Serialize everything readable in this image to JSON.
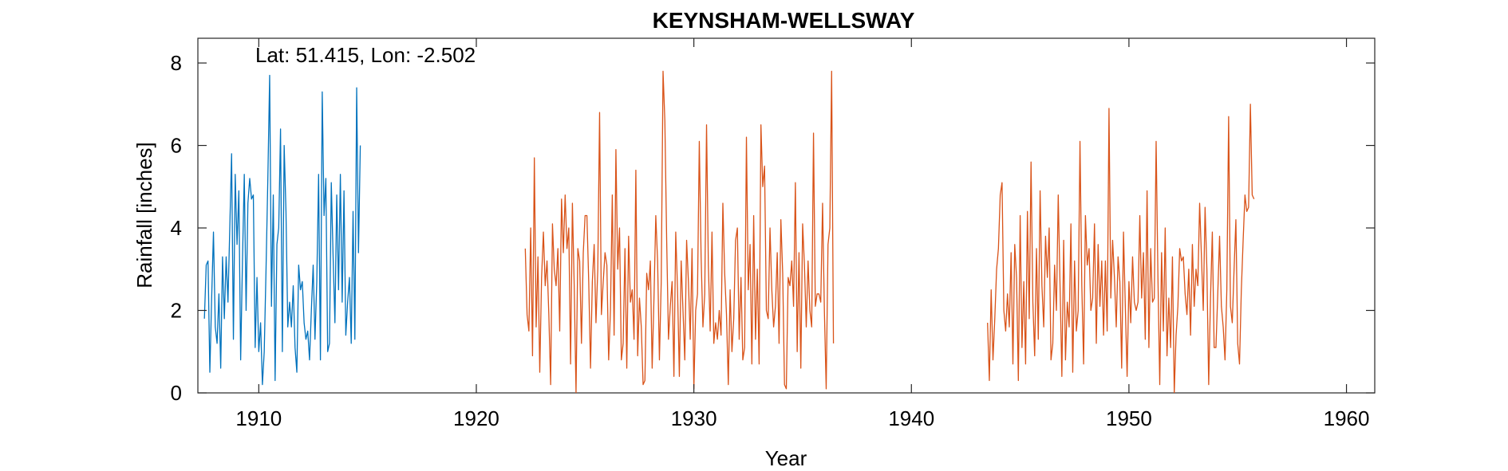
{
  "chart_data": {
    "type": "line",
    "title": "KEYNSHAM-WELLSWAY",
    "annotation": "Lat: 51.415, Lon: -2.502",
    "xlabel": "Year",
    "ylabel": "Rainfall [inches]",
    "xlim": [
      1907.2,
      1961.3
    ],
    "ylim": [
      0,
      8.6
    ],
    "xticks": [
      1910,
      1920,
      1930,
      1940,
      1950,
      1960
    ],
    "xtick_labels": [
      "1910",
      "1920",
      "1930",
      "1940",
      "1950",
      "1960"
    ],
    "yticks": [
      0,
      2,
      4,
      6,
      8
    ],
    "ytick_labels": [
      "0",
      "2",
      "4",
      "6",
      "8"
    ],
    "grid": false,
    "colors": {
      "series1": "#0072BD",
      "series2": "#D95319",
      "axis": "#262626"
    },
    "series": [
      {
        "x_start": 1907.5,
        "x_step": 0.0833333,
        "values": [
          1.8,
          3.1,
          3.2,
          0.5,
          2.3,
          3.9,
          1.6,
          1.2,
          2.4,
          0.6,
          3.3,
          1.8,
          3.3,
          2.2,
          4.0,
          5.8,
          1.3,
          5.3,
          3.6,
          4.9,
          0.8,
          3.2,
          5.3,
          2.0,
          4.6,
          5.2,
          4.7,
          4.8,
          1.1,
          2.8,
          1.0,
          1.7,
          0.2,
          1.0,
          3.0,
          5.2,
          7.7,
          2.1,
          4.8,
          0.3,
          3.6,
          4.0,
          6.4,
          1.0,
          6.0,
          4.4,
          1.6,
          2.2,
          1.6,
          2.6,
          1.1,
          0.5,
          3.1,
          2.5,
          2.7,
          1.7,
          1.3,
          1.5,
          0.8,
          2.0,
          3.1,
          1.3,
          2.7,
          5.3,
          0.8,
          7.3,
          4.3,
          5.2,
          1.0,
          1.2,
          5.1,
          3.3,
          1.7,
          4.8,
          2.5,
          5.3,
          2.2,
          4.9,
          1.4,
          2.2,
          2.8,
          1.2,
          4.4,
          1.3,
          7.4,
          3.4,
          6.0
        ]
      },
      {
        "x_start": 1922.25,
        "x_step": 0.0833333,
        "values": [
          3.5,
          1.9,
          1.5,
          4.0,
          0.9,
          5.7,
          1.6,
          3.3,
          0.5,
          2.8,
          3.9,
          2.6,
          3.2,
          1.9,
          0.2,
          4.1,
          3.0,
          2.6,
          3.5,
          1.5,
          4.7,
          3.4,
          4.8,
          3.5,
          4.0,
          0.7,
          4.6,
          2.6,
          0.0,
          3.5,
          3.2,
          1.2,
          3.4,
          4.3,
          4.3,
          2.7,
          0.6,
          2.7,
          3.6,
          1.7,
          3.0,
          6.8,
          1.9,
          2.7,
          3.4,
          3.1,
          0.8,
          2.0,
          4.8,
          1.4,
          5.9,
          3.0,
          4.0,
          0.8,
          1.2,
          3.5,
          0.6,
          3.8,
          2.2,
          2.5,
          1.3,
          5.4,
          0.9,
          2.3,
          1.6,
          0.2,
          0.3,
          2.9,
          2.5,
          3.2,
          0.6,
          2.3,
          4.3,
          3.2,
          0.8,
          2.7,
          7.8,
          6.6,
          3.7,
          1.3,
          2.1,
          2.7,
          0.4,
          3.9,
          2.5,
          0.4,
          3.2,
          2.0,
          0.8,
          3.7,
          2.7,
          1.3,
          3.5,
          0.1,
          2.0,
          2.4,
          6.1,
          3.3,
          1.6,
          2.4,
          6.5,
          3.1,
          1.5,
          3.9,
          1.2,
          1.7,
          1.3,
          2.0,
          1.4,
          4.6,
          2.9,
          1.9,
          0.2,
          2.5,
          1.0,
          1.8,
          3.7,
          4.0,
          1.3,
          2.8,
          0.8,
          1.1,
          6.2,
          2.5,
          3.6,
          0.7,
          4.3,
          1.3,
          3.0,
          0.7,
          6.5,
          5.0,
          5.5,
          2.0,
          1.8,
          4.0,
          2.5,
          1.6,
          2.1,
          3.4,
          1.2,
          4.2,
          2.9,
          0.2,
          0.1,
          2.8,
          2.6,
          3.2,
          2.1,
          5.1,
          1.0,
          3.4,
          0.6,
          4.1,
          3.1,
          1.6,
          3.2,
          2.0,
          1.6,
          6.3,
          2.1,
          2.4,
          2.4,
          2.2,
          4.6,
          2.0,
          0.1,
          3.6,
          4.0,
          7.8,
          1.2
        ]
      },
      {
        "x_start": 1943.5,
        "x_step": 0.0833333,
        "values": [
          1.7,
          0.3,
          2.5,
          0.8,
          1.8,
          3.0,
          3.5,
          4.8,
          5.1,
          2.0,
          1.5,
          2.4,
          1.6,
          3.4,
          0.7,
          3.6,
          2.8,
          0.3,
          4.3,
          1.1,
          2.7,
          0.7,
          4.4,
          1.8,
          5.6,
          2.2,
          0.9,
          3.5,
          1.3,
          4.9,
          2.6,
          1.6,
          3.8,
          2.8,
          4.0,
          0.8,
          1.2,
          3.1,
          2.0,
          4.8,
          2.6,
          0.4,
          3.7,
          0.8,
          2.2,
          1.6,
          4.1,
          0.5,
          3.2,
          1.5,
          2.0,
          6.1,
          2.6,
          0.7,
          4.3,
          3.1,
          3.5,
          2.0,
          2.3,
          4.1,
          1.2,
          3.6,
          2.1,
          3.2,
          1.4,
          3.2,
          1.5,
          6.9,
          2.3,
          3.7,
          2.8,
          1.6,
          3.3,
          2.7,
          0.6,
          3.9,
          2.1,
          0.4,
          2.7,
          1.7,
          3.3,
          2.2,
          2.0,
          2.2,
          4.3,
          2.3,
          3.4,
          1.3,
          4.9,
          1.1,
          3.5,
          2.2,
          2.3,
          6.1,
          2.8,
          0.2,
          3.4,
          1.5,
          4.0,
          0.9,
          2.3,
          1.1,
          3.3,
          0.0,
          1.4,
          2.1,
          3.5,
          3.2,
          3.3,
          2.4,
          1.9,
          3.0,
          1.4,
          3.6,
          2.1,
          3.0,
          2.6,
          4.6,
          3.3,
          2.0,
          4.5,
          3.0,
          0.2,
          2.3,
          3.9,
          1.1,
          1.1,
          2.4,
          3.8,
          2.1,
          1.6,
          0.8,
          2.5,
          6.7,
          2.1,
          1.7,
          3.0,
          4.2,
          1.2,
          0.7,
          2.5,
          3.7,
          4.8,
          4.4,
          4.5,
          7.0,
          4.8,
          4.7
        ]
      }
    ]
  }
}
